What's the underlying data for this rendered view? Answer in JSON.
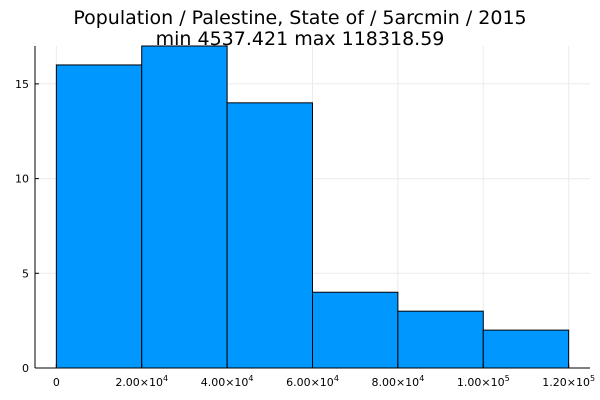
{
  "chart_data": {
    "type": "bar",
    "title_lines": [
      "Population / Palestine, State of / 5arcmin / 2015",
      "min 4537.421  max 118318.59"
    ],
    "xlabel": "",
    "ylabel": "",
    "bin_edges": [
      0,
      20000,
      40000,
      60000,
      80000,
      100000,
      120000
    ],
    "values": [
      16,
      17,
      14,
      4,
      3,
      2
    ],
    "xlim": [
      -5000,
      125000
    ],
    "ylim": [
      0,
      17
    ],
    "x_ticks": [
      {
        "value": 0,
        "mantissa": "0",
        "exponent": ""
      },
      {
        "value": 20000,
        "mantissa": "2.00×10",
        "exponent": "4"
      },
      {
        "value": 40000,
        "mantissa": "4.00×10",
        "exponent": "4"
      },
      {
        "value": 60000,
        "mantissa": "6.00×10",
        "exponent": "4"
      },
      {
        "value": 80000,
        "mantissa": "8.00×10",
        "exponent": "4"
      },
      {
        "value": 100000,
        "mantissa": "1.00×10",
        "exponent": "5"
      },
      {
        "value": 120000,
        "mantissa": "1.20×10",
        "exponent": "5"
      }
    ],
    "y_ticks": [
      {
        "value": 0,
        "label": "0"
      },
      {
        "value": 5,
        "label": "5"
      },
      {
        "value": 10,
        "label": "10"
      },
      {
        "value": 15,
        "label": "15"
      }
    ],
    "grid": true,
    "legend": "none",
    "colors": {
      "bar_fill": "#0097ff",
      "bar_stroke": "#000000",
      "grid": "#ebebeb",
      "axis": "#000000"
    }
  }
}
